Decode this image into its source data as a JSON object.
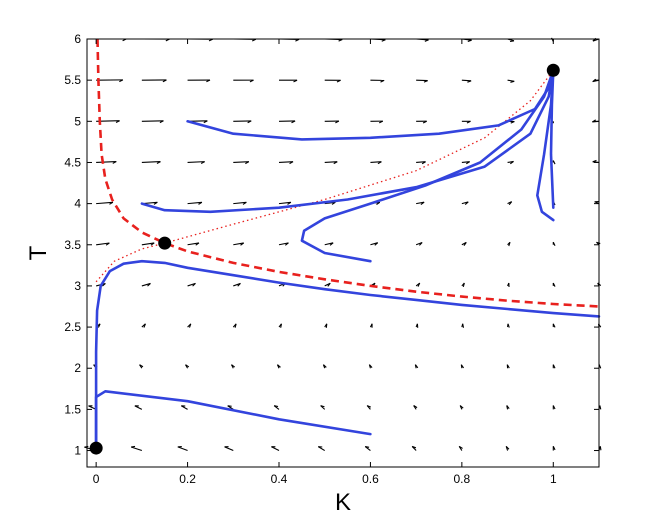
{
  "chart_data": {
    "type": "line",
    "title": "",
    "xlabel": "K",
    "ylabel": "T",
    "xlim": [
      -0.02,
      1.1
    ],
    "ylim": [
      0.8,
      6.0
    ],
    "xticks": [
      "0",
      "0.2",
      "0.4",
      "0.6",
      "0.8",
      "1"
    ],
    "yticks": [
      "1",
      "1.5",
      "2",
      "2.5",
      "3",
      "3.5",
      "4",
      "4.5",
      "5",
      "5.5",
      "6"
    ],
    "xtick_values": [
      0,
      0.2,
      0.4,
      0.6,
      0.8,
      1.0
    ],
    "ytick_values": [
      1,
      1.5,
      2,
      2.5,
      3,
      3.5,
      4,
      4.5,
      5,
      5.5,
      6
    ],
    "grid": false,
    "colors": {
      "trajectory": "#3344dd",
      "separatrix": "#e8211e",
      "manifold": "#e8211e",
      "field": "#000000",
      "point": "#000000"
    },
    "equilibria": [
      {
        "x": 0,
        "y": 1.03
      },
      {
        "x": 0.15,
        "y": 3.52
      },
      {
        "x": 1.0,
        "y": 5.62
      }
    ],
    "separatrix": {
      "style": "dashed",
      "x": [
        0.003,
        0.005,
        0.008,
        0.012,
        0.02,
        0.035,
        0.06,
        0.1,
        0.15,
        0.2,
        0.3,
        0.4,
        0.5,
        0.6,
        0.7,
        0.8,
        0.9,
        1.0,
        1.1
      ],
      "y": [
        6.0,
        5.5,
        5.0,
        4.6,
        4.3,
        4.05,
        3.82,
        3.65,
        3.52,
        3.42,
        3.28,
        3.17,
        3.08,
        3.0,
        2.93,
        2.87,
        2.82,
        2.78,
        2.75
      ]
    },
    "unstable_manifold": {
      "style": "dotted",
      "x": [
        0.0,
        0.04,
        0.1,
        0.15,
        0.3,
        0.5,
        0.7,
        0.85,
        0.95,
        1.0
      ],
      "y": [
        3.05,
        3.3,
        3.45,
        3.52,
        3.75,
        4.05,
        4.4,
        4.8,
        5.25,
        5.62
      ]
    },
    "trajectories": [
      {
        "x": [
          0.2,
          0.3,
          0.45,
          0.6,
          0.75,
          0.88,
          0.96,
          0.995,
          1.0
        ],
        "y": [
          5.0,
          4.85,
          4.78,
          4.8,
          4.85,
          4.95,
          5.15,
          5.45,
          5.62
        ]
      },
      {
        "x": [
          0.1,
          0.15,
          0.25,
          0.4,
          0.55,
          0.7,
          0.85,
          0.95,
          0.99,
          1.0
        ],
        "y": [
          4.0,
          3.92,
          3.9,
          3.95,
          4.05,
          4.2,
          4.45,
          4.85,
          5.3,
          5.62
        ]
      },
      {
        "x": [
          0.6,
          0.5,
          0.45,
          0.455,
          0.5,
          0.6,
          0.72,
          0.84,
          0.93,
          0.98,
          1.0
        ],
        "y": [
          3.3,
          3.4,
          3.55,
          3.67,
          3.82,
          4.0,
          4.22,
          4.5,
          4.9,
          5.3,
          5.62
        ]
      },
      {
        "x": [
          1.0,
          0.975,
          0.965,
          0.98,
          0.995,
          1.0
        ],
        "y": [
          3.8,
          3.9,
          4.1,
          4.6,
          5.2,
          5.62
        ]
      },
      {
        "x": [
          1.0,
          0.995,
          0.997,
          1.0
        ],
        "y": [
          3.95,
          4.6,
          5.2,
          5.62
        ]
      },
      {
        "x": [
          0.0,
          0.0,
          0.002,
          0.01,
          0.03,
          0.06,
          0.1,
          0.15,
          0.2,
          0.3,
          0.4,
          0.5,
          0.6,
          0.7,
          0.8,
          0.9,
          1.0,
          1.1
        ],
        "y": [
          1.03,
          2.2,
          2.7,
          3.0,
          3.18,
          3.27,
          3.3,
          3.28,
          3.22,
          3.13,
          3.04,
          2.96,
          2.89,
          2.83,
          2.77,
          2.72,
          2.67,
          2.63
        ]
      },
      {
        "x": [
          0.0,
          0.0,
          0.0,
          0.02,
          0.2,
          0.4,
          0.6
        ],
        "y": [
          1.03,
          1.3,
          1.65,
          1.72,
          1.6,
          1.38,
          1.2
        ]
      }
    ],
    "vector_field": {
      "k_values": [
        0,
        0.1,
        0.2,
        0.3,
        0.4,
        0.5,
        0.6,
        0.7,
        0.8,
        0.9,
        1.0,
        1.1
      ],
      "t_values": [
        1.0,
        1.5,
        2.0,
        2.5,
        3.0,
        3.5,
        4.0,
        4.5,
        5.0,
        5.5,
        6.0
      ]
    }
  }
}
